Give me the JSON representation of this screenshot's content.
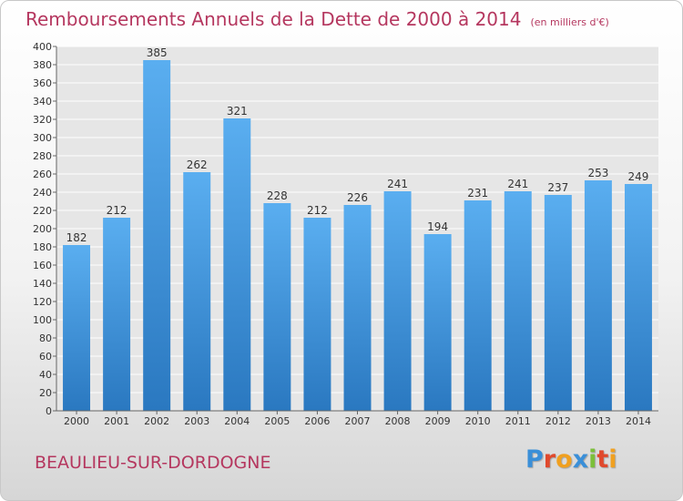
{
  "chart_data": {
    "type": "bar",
    "title": "Remboursements Annuels de la Dette de 2000 à 2014",
    "subtitle": "(en milliers d'€)",
    "categories": [
      "2000",
      "2001",
      "2002",
      "2003",
      "2004",
      "2005",
      "2006",
      "2007",
      "2008",
      "2009",
      "2010",
      "2011",
      "2012",
      "2013",
      "2014"
    ],
    "values": [
      182,
      212,
      385,
      262,
      321,
      228,
      212,
      226,
      241,
      194,
      231,
      241,
      237,
      253,
      249
    ],
    "ylim": [
      0,
      400
    ],
    "ytick_step": 20,
    "grid": true,
    "bar_color": "#3a8fd8",
    "title_color": "#b5375f"
  },
  "footer": {
    "region": "BEAULIEU-SUR-DORDOGNE",
    "logo_letters": [
      {
        "char": "P",
        "color": "#3a8fd8"
      },
      {
        "char": "r",
        "color": "#e0492d"
      },
      {
        "char": "o",
        "color": "#f0a020"
      },
      {
        "char": "x",
        "color": "#3a8fd8"
      },
      {
        "char": "i",
        "color": "#7cbf3a"
      },
      {
        "char": "t",
        "color": "#e0492d"
      },
      {
        "char": "i",
        "color": "#f0a020"
      }
    ]
  }
}
